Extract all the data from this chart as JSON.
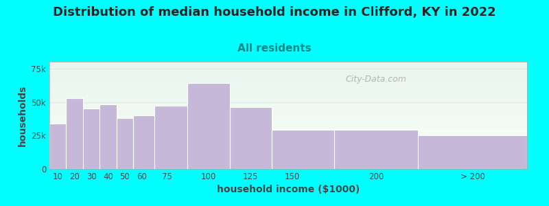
{
  "title": "Distribution of median household income in Clifford, KY in 2022",
  "subtitle": "All residents",
  "xlabel": "household income ($1000)",
  "ylabel": "households",
  "background_color": "#00ffff",
  "plot_bg_color_top": "#e8f5ee",
  "plot_bg_color_bottom": "#f8fff8",
  "bar_color": "#c5b8d8",
  "bar_edge_color": "#ffffff",
  "values": [
    34000,
    53000,
    45000,
    48000,
    38000,
    40000,
    47000,
    64000,
    46000,
    29000,
    29000,
    25000
  ],
  "yticks": [
    0,
    25000,
    50000,
    75000
  ],
  "ytick_labels": [
    "0",
    "25k",
    "50k",
    "75k"
  ],
  "title_fontsize": 13,
  "subtitle_fontsize": 11,
  "axis_label_fontsize": 10,
  "tick_fontsize": 8.5,
  "watermark_text": "City-Data.com",
  "watermark_color": "#aaaaaa",
  "title_color": "#222222",
  "subtitle_color": "#008888",
  "axis_color": "#444444",
  "bin_edges": [
    5,
    15,
    25,
    35,
    45,
    55,
    67.5,
    87.5,
    112.5,
    137.5,
    175,
    225,
    290
  ],
  "xtick_positions": [
    10,
    20,
    30,
    40,
    50,
    60,
    75,
    100,
    125,
    150,
    200,
    257.5
  ],
  "xtick_labels": [
    "10",
    "20",
    "30",
    "40",
    "50",
    "60",
    "75",
    "100",
    "125",
    "150",
    "200",
    "> 200"
  ]
}
